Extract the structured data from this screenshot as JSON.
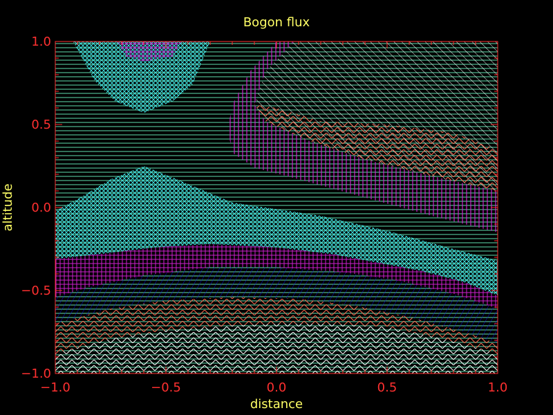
{
  "chart_data": {
    "type": "area",
    "title": "Bogon flux",
    "xlabel": "distance",
    "ylabel": "altitude",
    "xlim": [
      -1.0,
      1.0
    ],
    "ylim": [
      -1.0,
      1.0
    ],
    "x_ticks": [
      {
        "value": -1.0,
        "label": "−1.0"
      },
      {
        "value": -0.5,
        "label": "−0.5"
      },
      {
        "value": 0.0,
        "label": "0.0"
      },
      {
        "value": 0.5,
        "label": "0.5"
      },
      {
        "value": 1.0,
        "label": "1.0"
      }
    ],
    "y_ticks": [
      {
        "value": -1.0,
        "label": "−1.0"
      },
      {
        "value": -0.5,
        "label": "−0.5"
      },
      {
        "value": 0.0,
        "label": "0.0"
      },
      {
        "value": 0.5,
        "label": "0.5"
      },
      {
        "value": 1.0,
        "label": "1.0"
      }
    ],
    "grid": false,
    "colors": {
      "background": "#000000",
      "axes": "#ff3030",
      "text": "#ffff66",
      "white": "#ffffff",
      "salmon": "#ff6a50",
      "navy": "#1010e0",
      "magenta": "#d020d0",
      "cyan": "#40e0e0",
      "seafoam": "#60e0b0"
    },
    "regions": [
      {
        "pattern": "chevron-white",
        "color": "#ffffff",
        "polygon": [
          [
            -1.0,
            -1.0
          ],
          [
            1.0,
            -1.0
          ],
          [
            1.0,
            -0.88
          ],
          [
            0.75,
            -0.79
          ],
          [
            0.5,
            -0.72
          ],
          [
            0.25,
            -0.7
          ],
          [
            0.0,
            -0.7
          ],
          [
            -0.2,
            -0.71
          ],
          [
            -0.5,
            -0.74
          ],
          [
            -0.75,
            -0.79
          ],
          [
            -1.0,
            -0.88
          ]
        ]
      },
      {
        "pattern": "chevron-salmon",
        "color": "#ff6a50",
        "polygon": [
          [
            -1.0,
            -0.88
          ],
          [
            -0.75,
            -0.79
          ],
          [
            -0.5,
            -0.74
          ],
          [
            -0.2,
            -0.71
          ],
          [
            0.0,
            -0.7
          ],
          [
            0.25,
            -0.7
          ],
          [
            0.5,
            -0.72
          ],
          [
            0.75,
            -0.79
          ],
          [
            1.0,
            -0.88
          ],
          [
            1.0,
            -0.82
          ],
          [
            0.85,
            -0.75
          ],
          [
            0.6,
            -0.66
          ],
          [
            0.35,
            -0.59
          ],
          [
            0.1,
            -0.55
          ],
          [
            -0.2,
            -0.54
          ],
          [
            -0.5,
            -0.56
          ],
          [
            -0.75,
            -0.61
          ],
          [
            -1.0,
            -0.7
          ]
        ]
      },
      {
        "pattern": "diag-navy",
        "color": "#1010e0",
        "polygon": [
          [
            -1.0,
            -0.7
          ],
          [
            -0.75,
            -0.61
          ],
          [
            -0.5,
            -0.56
          ],
          [
            -0.2,
            -0.54
          ],
          [
            0.1,
            -0.55
          ],
          [
            0.35,
            -0.59
          ],
          [
            0.6,
            -0.66
          ],
          [
            0.85,
            -0.75
          ],
          [
            1.0,
            -0.82
          ],
          [
            1.0,
            -0.61
          ],
          [
            0.8,
            -0.52
          ],
          [
            0.55,
            -0.44
          ],
          [
            0.3,
            -0.39
          ],
          [
            0.0,
            -0.36
          ],
          [
            -0.3,
            -0.36
          ],
          [
            -0.6,
            -0.41
          ],
          [
            -0.85,
            -0.48
          ],
          [
            -1.0,
            -0.54
          ]
        ]
      },
      {
        "pattern": "grid-magenta",
        "color": "#d020d0",
        "polygon": [
          [
            -1.0,
            -0.54
          ],
          [
            -0.85,
            -0.48
          ],
          [
            -0.6,
            -0.41
          ],
          [
            -0.3,
            -0.36
          ],
          [
            0.0,
            -0.36
          ],
          [
            0.3,
            -0.39
          ],
          [
            0.55,
            -0.44
          ],
          [
            0.8,
            -0.52
          ],
          [
            1.0,
            -0.61
          ],
          [
            1.0,
            -0.53
          ],
          [
            0.85,
            -0.45
          ],
          [
            0.65,
            -0.38
          ],
          [
            0.45,
            -0.33
          ],
          [
            0.25,
            -0.28
          ],
          [
            0.0,
            -0.24
          ],
          [
            -0.3,
            -0.22
          ],
          [
            -0.55,
            -0.24
          ],
          [
            -0.8,
            -0.28
          ],
          [
            -1.0,
            -0.31
          ]
        ]
      },
      {
        "pattern": "cross-cyan",
        "color": "#40e0e0",
        "polygon": [
          [
            -1.0,
            -0.31
          ],
          [
            -0.8,
            -0.28
          ],
          [
            -0.55,
            -0.24
          ],
          [
            -0.3,
            -0.22
          ],
          [
            0.0,
            -0.24
          ],
          [
            0.25,
            -0.28
          ],
          [
            0.45,
            -0.33
          ],
          [
            0.65,
            -0.38
          ],
          [
            0.85,
            -0.45
          ],
          [
            1.0,
            -0.53
          ],
          [
            1.0,
            -0.32
          ],
          [
            0.8,
            -0.25
          ],
          [
            0.5,
            -0.14
          ],
          [
            0.2,
            -0.05
          ],
          [
            -0.2,
            0.03
          ],
          [
            -0.45,
            0.17
          ],
          [
            -0.6,
            0.25
          ],
          [
            -0.75,
            0.17
          ],
          [
            -0.9,
            0.05
          ],
          [
            -1.0,
            -0.02
          ]
        ]
      },
      {
        "pattern": "cross-cyan",
        "color": "#40e0e0",
        "polygon": [
          [
            -0.92,
            1.0
          ],
          [
            -0.3,
            1.0
          ],
          [
            -0.38,
            0.74
          ],
          [
            -0.47,
            0.64
          ],
          [
            -0.6,
            0.57
          ],
          [
            -0.73,
            0.64
          ],
          [
            -0.82,
            0.76
          ]
        ]
      },
      {
        "pattern": "grid-magenta",
        "color": "#d020d0",
        "polygon": [
          [
            -0.72,
            1.0
          ],
          [
            -0.43,
            1.0
          ],
          [
            -0.47,
            0.91
          ],
          [
            -0.6,
            0.88
          ],
          [
            -0.68,
            0.91
          ]
        ]
      },
      {
        "pattern": "vert-magenta",
        "color": "#d020d0",
        "polygon": [
          [
            0.0,
            1.0
          ],
          [
            0.08,
            1.0
          ],
          [
            -0.05,
            0.82
          ],
          [
            -0.1,
            0.62
          ],
          [
            -0.05,
            0.52
          ],
          [
            0.15,
            0.4
          ],
          [
            0.4,
            0.29
          ],
          [
            0.7,
            0.19
          ],
          [
            1.0,
            0.1
          ],
          [
            1.0,
            -0.15
          ],
          [
            0.7,
            -0.05
          ],
          [
            0.4,
            0.06
          ],
          [
            0.1,
            0.17
          ],
          [
            -0.1,
            0.24
          ],
          [
            -0.2,
            0.33
          ],
          [
            -0.22,
            0.47
          ],
          [
            -0.2,
            0.62
          ],
          [
            -0.12,
            0.82
          ]
        ]
      },
      {
        "pattern": "diag-white",
        "color": "#ffffff",
        "polygon": [
          [
            0.08,
            1.0
          ],
          [
            1.0,
            1.0
          ],
          [
            1.0,
            0.1
          ],
          [
            0.7,
            0.19
          ],
          [
            0.4,
            0.29
          ],
          [
            0.15,
            0.4
          ],
          [
            -0.05,
            0.52
          ],
          [
            -0.1,
            0.62
          ],
          [
            -0.05,
            0.82
          ]
        ]
      },
      {
        "pattern": "chevron-salmon",
        "color": "#ff6a50",
        "polygon": [
          [
            -0.05,
            0.52
          ],
          [
            0.15,
            0.4
          ],
          [
            0.4,
            0.29
          ],
          [
            0.7,
            0.19
          ],
          [
            1.0,
            0.1
          ],
          [
            1.0,
            0.35
          ],
          [
            0.8,
            0.45
          ],
          [
            0.5,
            0.5
          ],
          [
            0.2,
            0.52
          ],
          [
            0.0,
            0.6
          ],
          [
            -0.1,
            0.62
          ]
        ]
      }
    ]
  }
}
